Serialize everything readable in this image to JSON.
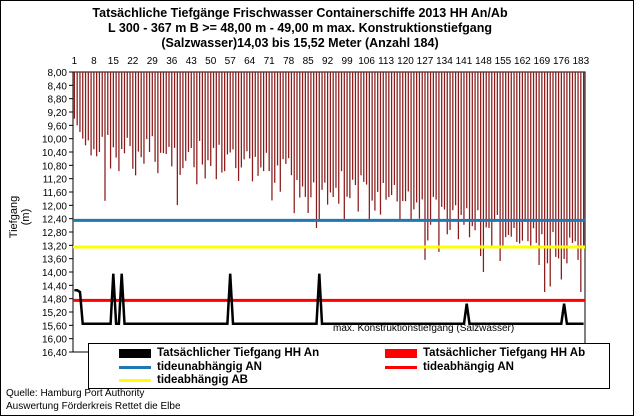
{
  "chart_data": {
    "type": "bar",
    "title_lines": [
      "Tatsächliche Tiefgänge Frischwasser Containerschiffe 2013 HH An/Ab",
      "L 300 - 367 m B >= 48,00 m - 49,00 m max. Konstruktionstiefgang",
      "(Salzwasser)14,03 bis 15,52 Meter (Anzahl 184)"
    ],
    "ylabel": "Tiefgang (m)",
    "y_axis_inverted": true,
    "ylim": [
      8.0,
      16.4
    ],
    "y_ticks": [
      "8,00",
      "8,40",
      "8,80",
      "9,20",
      "9,60",
      "10,00",
      "10,40",
      "10,80",
      "11,20",
      "11,60",
      "12,00",
      "12,40",
      "12,80",
      "13,20",
      "13,60",
      "14,00",
      "14,40",
      "14,80",
      "15,20",
      "15,60",
      "16,00",
      "16,40"
    ],
    "x_ticks": [
      "1",
      "8",
      "15",
      "22",
      "29",
      "36",
      "43",
      "50",
      "57",
      "64",
      "71",
      "78",
      "85",
      "92",
      "99",
      "106",
      "113",
      "120",
      "127",
      "134",
      "141",
      "148",
      "155",
      "162",
      "169",
      "176",
      "183"
    ],
    "ship_count": 184,
    "series": [
      {
        "name": "Tatsächlicher Tiefgang HH An",
        "color": "#000000",
        "style": "line",
        "baseline_value": 15.55,
        "dips": [
          [
            1,
            14.55
          ],
          [
            2,
            14.55
          ],
          [
            3,
            14.6
          ],
          [
            15,
            14.05
          ],
          [
            18,
            14.05
          ],
          [
            57,
            14.05
          ],
          [
            89,
            14.05
          ],
          [
            142,
            14.95
          ],
          [
            177,
            14.95
          ]
        ]
      },
      {
        "name": "Tatsächlicher Tiefgang HH Ab",
        "color": "#8b1a1a",
        "style": "bars",
        "description_values": "hanging bars from 8,00 m; typical draughts rising from approx. 10,2 m to approx. 14,5 m across the sorted ship index",
        "value_range": [
          9.2,
          14.6
        ]
      },
      {
        "name": "tideunabhängig AN",
        "color": "#1f77b4",
        "style": "hline",
        "value": 12.45
      },
      {
        "name": "tideabhängig AN",
        "color": "#ff0000",
        "style": "hline",
        "value": 14.85
      },
      {
        "name": "tideabhängig AB",
        "color": "#ffff00",
        "style": "hline",
        "value": 13.25
      }
    ],
    "annotation": "max. Konstruktionstiefgang (Salzwasser)"
  },
  "legend": {
    "an": "Tatsächlicher Tiefgang HH An",
    "ab": "Tatsächlicher Tiefgang HH Ab",
    "tideunab": "tideunabhängig AN",
    "tideab_an": "tideabhängig AN",
    "tideab_ab": "tideabhängig AB"
  },
  "source": {
    "line1": "Quelle: Hamburg Port Authority",
    "line2": "Auswertung Förderkreis Rettet die Elbe"
  },
  "colors": {
    "bar": "#8b1a1a",
    "blue": "#1f77b4",
    "red": "#ff0000",
    "yellow": "#ffff00",
    "black": "#000000"
  }
}
